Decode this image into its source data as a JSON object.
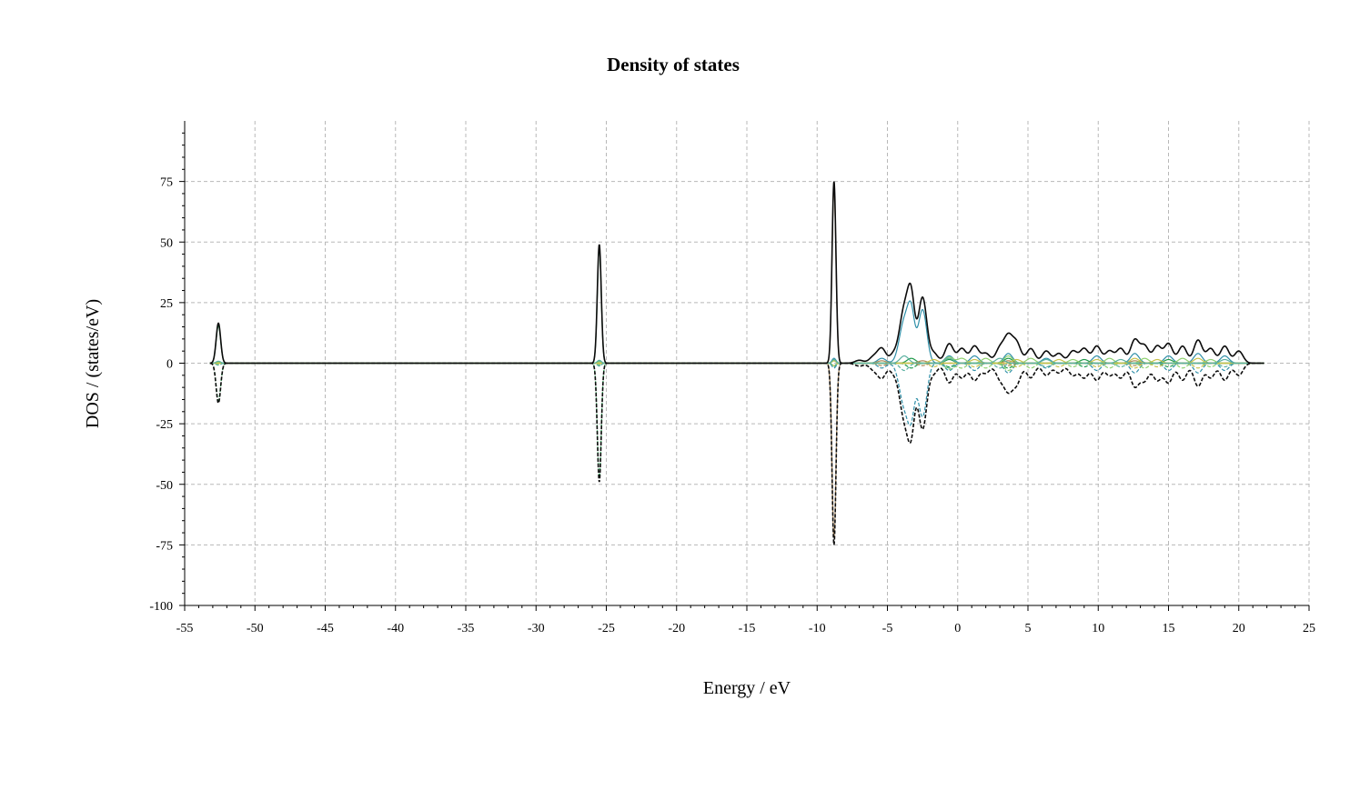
{
  "chart_data": {
    "type": "line",
    "title": "Density of states",
    "xlabel": "Energy / eV",
    "ylabel": "DOS / (states/eV)",
    "xlim": [
      -55,
      25
    ],
    "ylim": [
      -100,
      100
    ],
    "x_ticks": [
      "-55",
      "-50",
      "-45",
      "-40",
      "-35",
      "-30",
      "-25",
      "-20",
      "-15",
      "-10",
      "-5",
      "0",
      "5",
      "10",
      "15",
      "20",
      "25"
    ],
    "y_ticks": [
      "75",
      "50",
      "25",
      "0",
      "-25",
      "-50",
      "-75",
      "-100"
    ],
    "grid": true,
    "energy_range": [
      -53.2,
      21.8
    ],
    "series": [
      {
        "color": "#0b0b0b",
        "peaks": [
          [
            -52.6,
            16.5,
            0.16
          ],
          [
            -25.5,
            49,
            0.14
          ],
          [
            -8.8,
            75,
            0.14
          ],
          [
            -7.0,
            1.2,
            0.3
          ],
          [
            -6.0,
            2.5,
            0.3
          ],
          [
            -5.4,
            6,
            0.3
          ],
          [
            -4.6,
            3,
            0.25
          ],
          [
            -3.8,
            22,
            0.35
          ],
          [
            -3.3,
            23,
            0.25
          ],
          [
            -2.5,
            27,
            0.3
          ],
          [
            -1.7,
            4,
            0.3
          ],
          [
            -0.6,
            8,
            0.3
          ],
          [
            0.3,
            6,
            0.3
          ],
          [
            1.2,
            7,
            0.3
          ],
          [
            2.0,
            4,
            0.3
          ],
          [
            3.0,
            6,
            0.3
          ],
          [
            3.6,
            10.5,
            0.3
          ],
          [
            4.2,
            8,
            0.3
          ],
          [
            5.2,
            6,
            0.3
          ],
          [
            6.3,
            5,
            0.3
          ],
          [
            7.2,
            4,
            0.3
          ],
          [
            8.2,
            5,
            0.3
          ],
          [
            9.0,
            6,
            0.3
          ],
          [
            9.9,
            7,
            0.3
          ],
          [
            10.8,
            5,
            0.3
          ],
          [
            11.6,
            6,
            0.3
          ],
          [
            12.6,
            9.5,
            0.3
          ],
          [
            13.3,
            7,
            0.3
          ],
          [
            14.2,
            7,
            0.3
          ],
          [
            15.0,
            8,
            0.3
          ],
          [
            16.0,
            7,
            0.3
          ],
          [
            17.1,
            9.5,
            0.3
          ],
          [
            18.0,
            6,
            0.3
          ],
          [
            19.0,
            7,
            0.3
          ],
          [
            20.0,
            5,
            0.3
          ]
        ]
      },
      {
        "color": "#2f8fa8",
        "peaks": [
          [
            -52.6,
            0.5,
            0.16
          ],
          [
            -25.5,
            1,
            0.14
          ],
          [
            -8.8,
            2,
            0.14
          ],
          [
            -5.4,
            2,
            0.3
          ],
          [
            -3.8,
            17,
            0.35
          ],
          [
            -3.3,
            18,
            0.25
          ],
          [
            -2.5,
            22,
            0.3
          ],
          [
            -0.6,
            3,
            0.3
          ],
          [
            1.2,
            3,
            0.3
          ],
          [
            3.6,
            4,
            0.3
          ],
          [
            6.3,
            2,
            0.3
          ],
          [
            9.9,
            3,
            0.3
          ],
          [
            12.6,
            4,
            0.3
          ],
          [
            15.0,
            3,
            0.3
          ],
          [
            17.1,
            4,
            0.3
          ],
          [
            19.0,
            3,
            0.3
          ]
        ]
      },
      {
        "color": "#1f9a4a",
        "peaks": [
          [
            -52.6,
            15.5,
            0.16
          ],
          [
            -25.5,
            47.5,
            0.14
          ],
          [
            -8.8,
            1,
            0.14
          ],
          [
            -3.3,
            2,
            0.3
          ],
          [
            -0.6,
            1.5,
            0.3
          ],
          [
            3.6,
            2,
            0.3
          ],
          [
            9.0,
            1.5,
            0.3
          ],
          [
            15.0,
            1.5,
            0.3
          ]
        ]
      },
      {
        "color": "#b08a5a",
        "peaks": [
          [
            -8.8,
            72,
            0.14
          ],
          [
            -5.4,
            1,
            0.3
          ],
          [
            -2.5,
            1,
            0.3
          ],
          [
            3.6,
            1,
            0.3
          ],
          [
            12.6,
            1,
            0.3
          ]
        ]
      },
      {
        "color": "#8fd16f",
        "peaks": [
          [
            -52.6,
            0.4,
            0.16
          ],
          [
            -25.5,
            0.6,
            0.14
          ],
          [
            -8.8,
            1,
            0.14
          ],
          [
            -0.6,
            2.5,
            0.3
          ],
          [
            0.3,
            2,
            0.3
          ],
          [
            2.0,
            2,
            0.3
          ],
          [
            3.6,
            3,
            0.3
          ],
          [
            5.2,
            2,
            0.3
          ],
          [
            8.2,
            1.5,
            0.3
          ],
          [
            10.8,
            2,
            0.3
          ],
          [
            13.3,
            2,
            0.3
          ],
          [
            16.0,
            2,
            0.3
          ],
          [
            18.0,
            1.5,
            0.3
          ]
        ]
      },
      {
        "color": "#c9c24a",
        "peaks": [
          [
            -8.8,
            1,
            0.14
          ],
          [
            -1.7,
            1.5,
            0.3
          ],
          [
            1.2,
            1.5,
            0.3
          ],
          [
            4.2,
            1.5,
            0.3
          ],
          [
            7.2,
            1.5,
            0.3
          ],
          [
            9.9,
            1.5,
            0.3
          ],
          [
            12.6,
            2,
            0.3
          ],
          [
            14.2,
            1.5,
            0.3
          ],
          [
            17.1,
            2,
            0.3
          ]
        ]
      },
      {
        "color": "#5ab0a0",
        "peaks": [
          [
            -52.6,
            0.8,
            0.16
          ],
          [
            -25.5,
            1.2,
            0.14
          ],
          [
            -8.8,
            1.5,
            0.14
          ],
          [
            -3.8,
            3,
            0.3
          ],
          [
            -0.6,
            2,
            0.3
          ],
          [
            3.0,
            2,
            0.3
          ],
          [
            6.3,
            1.5,
            0.3
          ],
          [
            11.6,
            1.5,
            0.3
          ],
          [
            19.0,
            1.5,
            0.3
          ]
        ]
      }
    ]
  }
}
